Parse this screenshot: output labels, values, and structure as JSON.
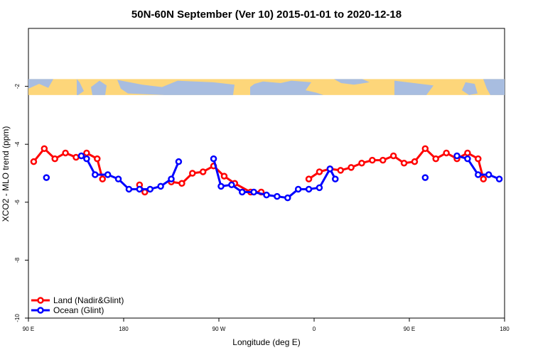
{
  "chart_data": {
    "type": "line",
    "title": "50N-60N September (Ver 10)   2015-01-01 to 2020-12-18",
    "xlabel": "Longitude (deg E)",
    "ylabel": "XCO2 - MLO trend (ppm)",
    "xlim": [
      90,
      540
    ],
    "ylim": [
      -10,
      0
    ],
    "x_ticks": [
      {
        "value": 90,
        "label": "90 E"
      },
      {
        "value": 180,
        "label": "180"
      },
      {
        "value": 270,
        "label": "90 W"
      },
      {
        "value": 360,
        "label": "0"
      },
      {
        "value": 450,
        "label": "90 E"
      },
      {
        "value": 540,
        "label": "180"
      }
    ],
    "y_ticks": [
      {
        "value": -2,
        "label": "-2"
      },
      {
        "value": -4,
        "label": "-4"
      },
      {
        "value": -6,
        "label": "-6"
      },
      {
        "value": -8,
        "label": "-8"
      },
      {
        "value": -10,
        "label": "-10"
      }
    ],
    "map_band": {
      "y_min": -2.3,
      "y_max": -1.75,
      "description": "world map strip"
    },
    "legend": {
      "position": "bottom-left",
      "entries": [
        "Land (Nadir&Glint)",
        "Ocean (Glint)"
      ]
    },
    "series": [
      {
        "name": "Land (Nadir&Glint)",
        "color": "#ff0000",
        "segments": [
          [
            [
              95,
              -4.6
            ],
            [
              105,
              -4.15
            ],
            [
              115,
              -4.5
            ],
            [
              125,
              -4.3
            ],
            [
              135,
              -4.45
            ],
            [
              145,
              -4.3
            ],
            [
              155,
              -4.5
            ],
            [
              160,
              -5.2
            ]
          ],
          [
            [
              195,
              -5.4
            ],
            [
              200,
              -5.65
            ]
          ],
          [
            [
              225,
              -5.3
            ],
            [
              235,
              -5.35
            ],
            [
              245,
              -5.0
            ],
            [
              255,
              -4.95
            ],
            [
              265,
              -4.75
            ],
            [
              275,
              -5.1
            ],
            [
              285,
              -5.35
            ],
            [
              300,
              -5.65
            ],
            [
              310,
              -5.65
            ]
          ],
          [
            [
              355,
              -5.2
            ],
            [
              365,
              -4.95
            ],
            [
              375,
              -4.85
            ],
            [
              385,
              -4.9
            ],
            [
              395,
              -4.8
            ],
            [
              405,
              -4.65
            ],
            [
              415,
              -4.55
            ],
            [
              425,
              -4.55
            ],
            [
              435,
              -4.4
            ],
            [
              445,
              -4.65
            ],
            [
              455,
              -4.6
            ],
            [
              465,
              -4.15
            ],
            [
              475,
              -4.5
            ],
            [
              485,
              -4.3
            ],
            [
              495,
              -4.5
            ],
            [
              505,
              -4.3
            ],
            [
              515,
              -4.5
            ],
            [
              520,
              -5.2
            ]
          ]
        ],
        "isolated_points": []
      },
      {
        "name": "Ocean (Glint)",
        "color": "#0000ff",
        "segments": [
          [
            [
              140,
              -4.4
            ],
            [
              145,
              -4.5
            ],
            [
              153,
              -5.05
            ],
            [
              165,
              -5.05
            ],
            [
              175,
              -5.2
            ],
            [
              185,
              -5.55
            ],
            [
              195,
              -5.55
            ],
            [
              205,
              -5.55
            ],
            [
              215,
              -5.45
            ],
            [
              225,
              -5.2
            ],
            [
              232,
              -4.6
            ]
          ],
          [
            [
              265,
              -4.5
            ],
            [
              272,
              -5.45
            ],
            [
              282,
              -5.4
            ],
            [
              292,
              -5.65
            ],
            [
              303,
              -5.65
            ],
            [
              315,
              -5.75
            ],
            [
              325,
              -5.8
            ],
            [
              335,
              -5.85
            ],
            [
              345,
              -5.55
            ],
            [
              355,
              -5.55
            ],
            [
              365,
              -5.5
            ],
            [
              375,
              -4.85
            ],
            [
              380,
              -5.2
            ]
          ],
          [
            [
              495,
              -4.4
            ],
            [
              505,
              -4.5
            ],
            [
              515,
              -5.05
            ],
            [
              525,
              -5.05
            ],
            [
              535,
              -5.2
            ]
          ]
        ],
        "isolated_points": [
          [
            107,
            -5.15
          ],
          [
            465,
            -5.15
          ]
        ]
      }
    ]
  }
}
